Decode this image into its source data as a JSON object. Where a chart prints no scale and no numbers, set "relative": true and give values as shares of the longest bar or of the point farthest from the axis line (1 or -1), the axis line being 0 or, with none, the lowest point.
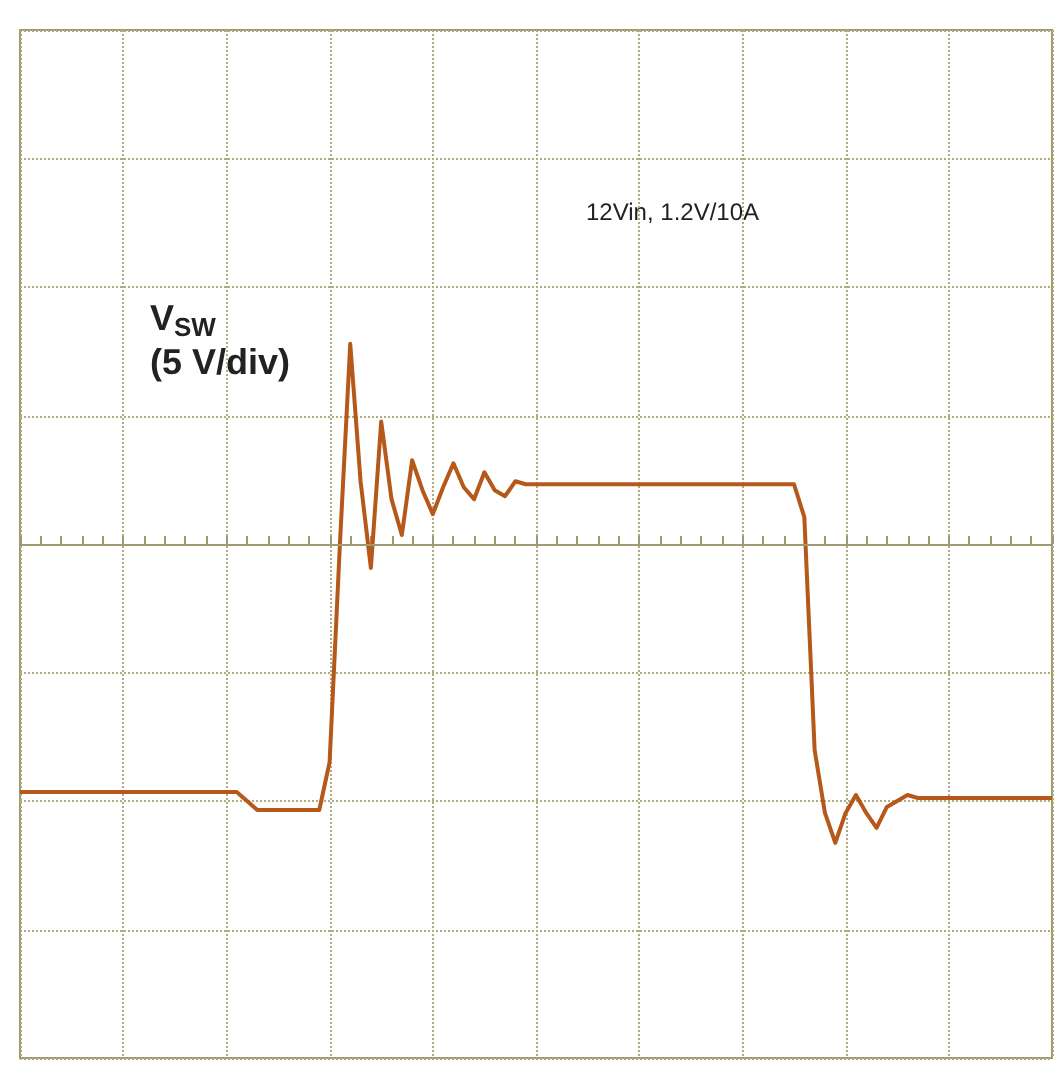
{
  "chart_data": {
    "type": "line",
    "relative": true,
    "grid": true,
    "marker": "none",
    "line_style": "solid",
    "categories": [
      null,
      null,
      null,
      null,
      null,
      null,
      null,
      null,
      null,
      null,
      null,
      null,
      null,
      null,
      null,
      null,
      null,
      null,
      null,
      null,
      null,
      null,
      null,
      null,
      null,
      null,
      null,
      null,
      null,
      null,
      null,
      null,
      null,
      null,
      null,
      null,
      null,
      null,
      null,
      null,
      null,
      null,
      null,
      null,
      null,
      null,
      null,
      null,
      null,
      null,
      null,
      null,
      null,
      null,
      null,
      null,
      null,
      null,
      null,
      null,
      null,
      null,
      null,
      null,
      null,
      null,
      null,
      null,
      null,
      null,
      null,
      null,
      null,
      null,
      null,
      null,
      null,
      null,
      null,
      null,
      null,
      null,
      null,
      null,
      null,
      null,
      null,
      null,
      null,
      null,
      null,
      null,
      null,
      null,
      null,
      null,
      null,
      null,
      null,
      null,
      null
    ],
    "series": [
      {
        "color": "#b5581a",
        "values": [
          -0.83,
          -0.83,
          -0.83,
          -0.83,
          -0.83,
          -0.83,
          -0.83,
          -0.83,
          -0.83,
          -0.83,
          -0.83,
          -0.83,
          -0.83,
          -0.83,
          -0.83,
          -0.83,
          -0.83,
          -0.83,
          -0.83,
          -0.83,
          -0.83,
          -0.83,
          -0.86,
          -0.89,
          -0.89,
          -0.89,
          -0.89,
          -0.89,
          -0.89,
          -0.89,
          -0.73,
          0,
          0.67,
          0.21,
          -0.08,
          0.41,
          0.15,
          0.03,
          0.28,
          0.18,
          0.1,
          0.19,
          0.27,
          0.19,
          0.15,
          0.24,
          0.18,
          0.16,
          0.21,
          0.2,
          0.2,
          0.2,
          0.2,
          0.2,
          0.2,
          0.2,
          0.2,
          0.2,
          0.2,
          0.2,
          0.2,
          0.2,
          0.2,
          0.2,
          0.2,
          0.2,
          0.2,
          0.2,
          0.2,
          0.2,
          0.2,
          0.2,
          0.2,
          0.2,
          0.2,
          0.2,
          0.09,
          -0.69,
          -0.9,
          -1,
          -0.9,
          -0.84,
          -0.9,
          -0.95,
          -0.88,
          -0.86,
          -0.84,
          -0.85,
          -0.85,
          -0.85,
          -0.85,
          -0.85,
          -0.85,
          -0.85,
          -0.85,
          -0.85,
          -0.85,
          -0.85,
          -0.85,
          -0.85,
          -0.85
        ]
      }
    ],
    "ref_lines": [
      {
        "axis": "y",
        "value": 0,
        "color": "#a09a70",
        "line_style": "solid"
      }
    ],
    "annotations": [
      "V$_{SW}$\n(5 V/div)",
      "12Vin, 1.2V/10A"
    ]
  }
}
